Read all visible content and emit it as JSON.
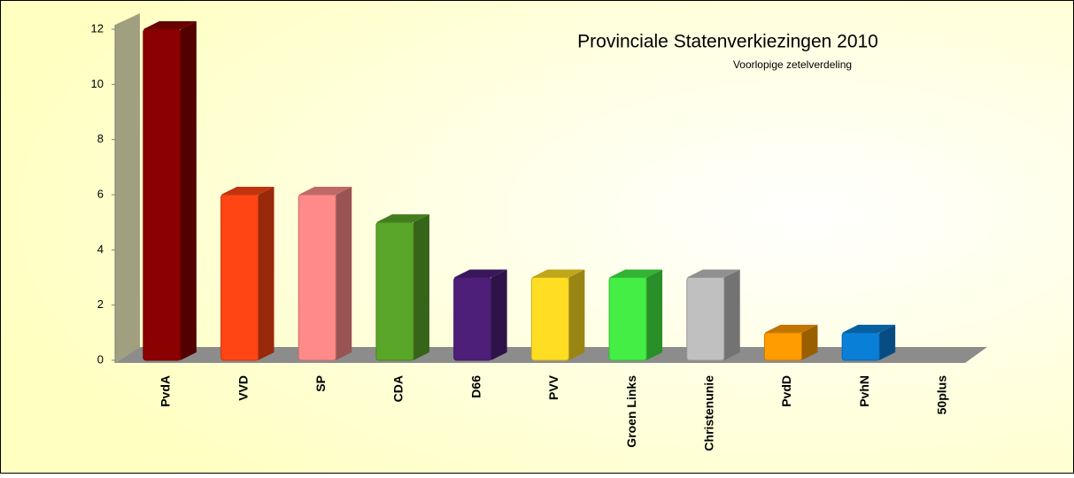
{
  "chart_data": {
    "type": "bar3d",
    "title": "Provinciale Statenverkiezingen 2010",
    "subtitle": "Voorlopige zetelverdeling",
    "categories": [
      "PvdA",
      "VVD",
      "SP",
      "CDA",
      "D66",
      "PVV",
      "Groen Links",
      "Christenunie",
      "PvdD",
      "PvhN",
      "50plus"
    ],
    "values": [
      12,
      6,
      6,
      5,
      3,
      3,
      3,
      3,
      1,
      1,
      0
    ],
    "colors": [
      "#8b0000",
      "#ff4513",
      "#ff8a8a",
      "#5aa628",
      "#4d1f78",
      "#ffdd22",
      "#44ee44",
      "#c0c0c0",
      "#ff9c00",
      "#0a7fd8",
      null
    ],
    "ylim": [
      0,
      12
    ],
    "yticks": [
      0,
      2,
      4,
      6,
      8,
      10,
      12
    ]
  }
}
